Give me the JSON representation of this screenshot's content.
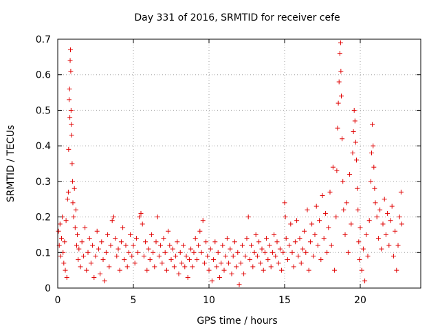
{
  "chart_data": {
    "type": "scatter",
    "title": "Day 331 of 2016, SRMTID for receiver cefe",
    "xlabel": "GPS time / hours",
    "ylabel": "SRMTID / TECUs",
    "xlim": [
      0,
      24
    ],
    "ylim": [
      0,
      0.7
    ],
    "x_ticks": [
      0,
      5,
      10,
      15,
      20
    ],
    "x_tick_labels": [
      "0",
      "5",
      "10",
      "15",
      "20"
    ],
    "y_ticks": [
      0,
      0.1,
      0.2,
      0.3,
      0.4,
      0.5,
      0.6,
      0.7
    ],
    "y_tick_labels": [
      "0",
      "0.1",
      "0.2",
      "0.3",
      "0.4",
      "0.5",
      "0.6",
      "0.7"
    ],
    "grid": true,
    "marker": "+",
    "series": [
      {
        "name": "SRMTID",
        "color": "#e00000",
        "points": [
          [
            0.05,
            0.16
          ],
          [
            0.1,
            0.12
          ],
          [
            0.15,
            0.18
          ],
          [
            0.2,
            0.09
          ],
          [
            0.25,
            0.14
          ],
          [
            0.3,
            0.2
          ],
          [
            0.35,
            0.1
          ],
          [
            0.4,
            0.07
          ],
          [
            0.45,
            0.13
          ],
          [
            0.5,
            0.05
          ],
          [
            0.55,
            0.19
          ],
          [
            0.6,
            0.03
          ],
          [
            0.65,
            0.25
          ],
          [
            0.7,
            0.27
          ],
          [
            0.72,
            0.39
          ],
          [
            0.75,
            0.53
          ],
          [
            0.78,
            0.56
          ],
          [
            0.8,
            0.48
          ],
          [
            0.82,
            0.64
          ],
          [
            0.84,
            0.67
          ],
          [
            0.86,
            0.61
          ],
          [
            0.88,
            0.5
          ],
          [
            0.9,
            0.46
          ],
          [
            0.92,
            0.43
          ],
          [
            0.95,
            0.35
          ],
          [
            0.98,
            0.3
          ],
          [
            1.0,
            0.24
          ],
          [
            1.05,
            0.2
          ],
          [
            1.1,
            0.28
          ],
          [
            1.15,
            0.17
          ],
          [
            1.2,
            0.22
          ],
          [
            1.25,
            0.12
          ],
          [
            1.3,
            0.15
          ],
          [
            1.35,
            0.08
          ],
          [
            1.4,
            0.11
          ],
          [
            1.5,
            0.06
          ],
          [
            1.6,
            0.13
          ],
          [
            1.7,
            0.09
          ],
          [
            1.8,
            0.17
          ],
          [
            1.9,
            0.05
          ],
          [
            2.0,
            0.1
          ],
          [
            2.1,
            0.14
          ],
          [
            2.2,
            0.07
          ],
          [
            2.3,
            0.12
          ],
          [
            2.4,
            0.03
          ],
          [
            2.5,
            0.09
          ],
          [
            2.6,
            0.16
          ],
          [
            2.7,
            0.11
          ],
          [
            2.8,
            0.04
          ],
          [
            2.9,
            0.13
          ],
          [
            3.0,
            0.08
          ],
          [
            3.1,
            0.02
          ],
          [
            3.2,
            0.1
          ],
          [
            3.3,
            0.15
          ],
          [
            3.4,
            0.06
          ],
          [
            3.5,
            0.12
          ],
          [
            3.6,
            0.19
          ],
          [
            3.7,
            0.2
          ],
          [
            3.8,
            0.14
          ],
          [
            3.9,
            0.09
          ],
          [
            4.0,
            0.11
          ],
          [
            4.1,
            0.05
          ],
          [
            4.2,
            0.13
          ],
          [
            4.3,
            0.17
          ],
          [
            4.4,
            0.08
          ],
          [
            4.5,
            0.12
          ],
          [
            4.6,
            0.06
          ],
          [
            4.7,
            0.1
          ],
          [
            4.8,
            0.15
          ],
          [
            4.9,
            0.09
          ],
          [
            5.0,
            0.12
          ],
          [
            5.1,
            0.07
          ],
          [
            5.2,
            0.14
          ],
          [
            5.3,
            0.1
          ],
          [
            5.4,
            0.2
          ],
          [
            5.5,
            0.21
          ],
          [
            5.6,
            0.18
          ],
          [
            5.7,
            0.09
          ],
          [
            5.8,
            0.13
          ],
          [
            5.9,
            0.05
          ],
          [
            6.0,
            0.11
          ],
          [
            6.1,
            0.08
          ],
          [
            6.2,
            0.15
          ],
          [
            6.3,
            0.1
          ],
          [
            6.4,
            0.06
          ],
          [
            6.5,
            0.13
          ],
          [
            6.6,
            0.2
          ],
          [
            6.7,
            0.09
          ],
          [
            6.8,
            0.12
          ],
          [
            6.9,
            0.07
          ],
          [
            7.0,
            0.14
          ],
          [
            7.1,
            0.1
          ],
          [
            7.2,
            0.05
          ],
          [
            7.3,
            0.16
          ],
          [
            7.4,
            0.12
          ],
          [
            7.5,
            0.08
          ],
          [
            7.6,
            0.11
          ],
          [
            7.7,
            0.06
          ],
          [
            7.8,
            0.09
          ],
          [
            7.9,
            0.13
          ],
          [
            8.0,
            0.04
          ],
          [
            8.1,
            0.1
          ],
          [
            8.2,
            0.07
          ],
          [
            8.3,
            0.12
          ],
          [
            8.4,
            0.06
          ],
          [
            8.5,
            0.09
          ],
          [
            8.6,
            0.03
          ],
          [
            8.7,
            0.08
          ],
          [
            8.8,
            0.11
          ],
          [
            8.9,
            0.06
          ],
          [
            9.0,
            0.1
          ],
          [
            9.1,
            0.14
          ],
          [
            9.2,
            0.08
          ],
          [
            9.3,
            0.12
          ],
          [
            9.4,
            0.16
          ],
          [
            9.5,
            0.1
          ],
          [
            9.6,
            0.19
          ],
          [
            9.7,
            0.07
          ],
          [
            9.8,
            0.13
          ],
          [
            9.9,
            0.09
          ],
          [
            10.0,
            0.05
          ],
          [
            10.1,
            0.11
          ],
          [
            10.2,
            0.02
          ],
          [
            10.3,
            0.08
          ],
          [
            10.4,
            0.13
          ],
          [
            10.5,
            0.06
          ],
          [
            10.6,
            0.1
          ],
          [
            10.7,
            0.03
          ],
          [
            10.8,
            0.07
          ],
          [
            10.9,
            0.12
          ],
          [
            11.0,
            0.05
          ],
          [
            11.1,
            0.09
          ],
          [
            11.2,
            0.14
          ],
          [
            11.3,
            0.07
          ],
          [
            11.4,
            0.11
          ],
          [
            11.5,
            0.04
          ],
          [
            11.6,
            0.09
          ],
          [
            11.7,
            0.13
          ],
          [
            11.8,
            0.06
          ],
          [
            11.9,
            0.1
          ],
          [
            12.0,
            0.01
          ],
          [
            12.1,
            0.07
          ],
          [
            12.2,
            0.12
          ],
          [
            12.3,
            0.04
          ],
          [
            12.4,
            0.09
          ],
          [
            12.5,
            0.14
          ],
          [
            12.6,
            0.2
          ],
          [
            12.7,
            0.08
          ],
          [
            12.8,
            0.12
          ],
          [
            12.9,
            0.06
          ],
          [
            13.0,
            0.1
          ],
          [
            13.1,
            0.15
          ],
          [
            13.2,
            0.09
          ],
          [
            13.3,
            0.13
          ],
          [
            13.4,
            0.07
          ],
          [
            13.5,
            0.11
          ],
          [
            13.6,
            0.05
          ],
          [
            13.7,
            0.1
          ],
          [
            13.8,
            0.14
          ],
          [
            13.9,
            0.08
          ],
          [
            14.0,
            0.12
          ],
          [
            14.1,
            0.06
          ],
          [
            14.2,
            0.1
          ],
          [
            14.3,
            0.15
          ],
          [
            14.4,
            0.09
          ],
          [
            14.5,
            0.13
          ],
          [
            14.6,
            0.07
          ],
          [
            14.7,
            0.11
          ],
          [
            14.8,
            0.05
          ],
          [
            14.9,
            0.1
          ],
          [
            15.0,
            0.24
          ],
          [
            15.05,
            0.2
          ],
          [
            15.1,
            0.14
          ],
          [
            15.2,
            0.08
          ],
          [
            15.3,
            0.12
          ],
          [
            15.4,
            0.18
          ],
          [
            15.5,
            0.1
          ],
          [
            15.6,
            0.06
          ],
          [
            15.7,
            0.13
          ],
          [
            15.8,
            0.19
          ],
          [
            15.9,
            0.09
          ],
          [
            16.0,
            0.14
          ],
          [
            16.1,
            0.07
          ],
          [
            16.2,
            0.11
          ],
          [
            16.3,
            0.16
          ],
          [
            16.4,
            0.1
          ],
          [
            16.5,
            0.22
          ],
          [
            16.6,
            0.05
          ],
          [
            16.7,
            0.13
          ],
          [
            16.8,
            0.18
          ],
          [
            16.9,
            0.09
          ],
          [
            17.0,
            0.15
          ],
          [
            17.1,
            0.23
          ],
          [
            17.2,
            0.12
          ],
          [
            17.3,
            0.19
          ],
          [
            17.4,
            0.08
          ],
          [
            17.5,
            0.26
          ],
          [
            17.6,
            0.14
          ],
          [
            17.7,
            0.21
          ],
          [
            17.8,
            0.1
          ],
          [
            17.9,
            0.17
          ],
          [
            18.0,
            0.27
          ],
          [
            18.1,
            0.12
          ],
          [
            18.2,
            0.34
          ],
          [
            18.3,
            0.05
          ],
          [
            18.4,
            0.2
          ],
          [
            18.45,
            0.33
          ],
          [
            18.5,
            0.45
          ],
          [
            18.55,
            0.52
          ],
          [
            18.6,
            0.58
          ],
          [
            18.65,
            0.66
          ],
          [
            18.7,
            0.69
          ],
          [
            18.72,
            0.61
          ],
          [
            18.75,
            0.54
          ],
          [
            18.8,
            0.42
          ],
          [
            18.85,
            0.3
          ],
          [
            18.9,
            0.22
          ],
          [
            19.0,
            0.15
          ],
          [
            19.1,
            0.24
          ],
          [
            19.2,
            0.1
          ],
          [
            19.3,
            0.32
          ],
          [
            19.4,
            0.18
          ],
          [
            19.5,
            0.38
          ],
          [
            19.55,
            0.44
          ],
          [
            19.6,
            0.5
          ],
          [
            19.65,
            0.47
          ],
          [
            19.7,
            0.41
          ],
          [
            19.75,
            0.36
          ],
          [
            19.8,
            0.28
          ],
          [
            19.85,
            0.22
          ],
          [
            19.9,
            0.13
          ],
          [
            19.95,
            0.08
          ],
          [
            20.0,
            0.17
          ],
          [
            20.1,
            0.05
          ],
          [
            20.2,
            0.11
          ],
          [
            20.3,
            0.02
          ],
          [
            20.4,
            0.15
          ],
          [
            20.5,
            0.09
          ],
          [
            20.6,
            0.19
          ],
          [
            20.7,
            0.3
          ],
          [
            20.75,
            0.38
          ],
          [
            20.8,
            0.46
          ],
          [
            20.85,
            0.4
          ],
          [
            20.9,
            0.34
          ],
          [
            20.95,
            0.28
          ],
          [
            21.0,
            0.24
          ],
          [
            21.1,
            0.2
          ],
          [
            21.2,
            0.14
          ],
          [
            21.3,
            0.22
          ],
          [
            21.4,
            0.11
          ],
          [
            21.5,
            0.18
          ],
          [
            21.6,
            0.25
          ],
          [
            21.7,
            0.15
          ],
          [
            21.8,
            0.21
          ],
          [
            21.9,
            0.12
          ],
          [
            22.0,
            0.19
          ],
          [
            22.1,
            0.23
          ],
          [
            22.2,
            0.09
          ],
          [
            22.3,
            0.16
          ],
          [
            22.4,
            0.05
          ],
          [
            22.5,
            0.12
          ],
          [
            22.6,
            0.2
          ],
          [
            22.7,
            0.27
          ],
          [
            22.75,
            0.18
          ]
        ]
      }
    ]
  }
}
